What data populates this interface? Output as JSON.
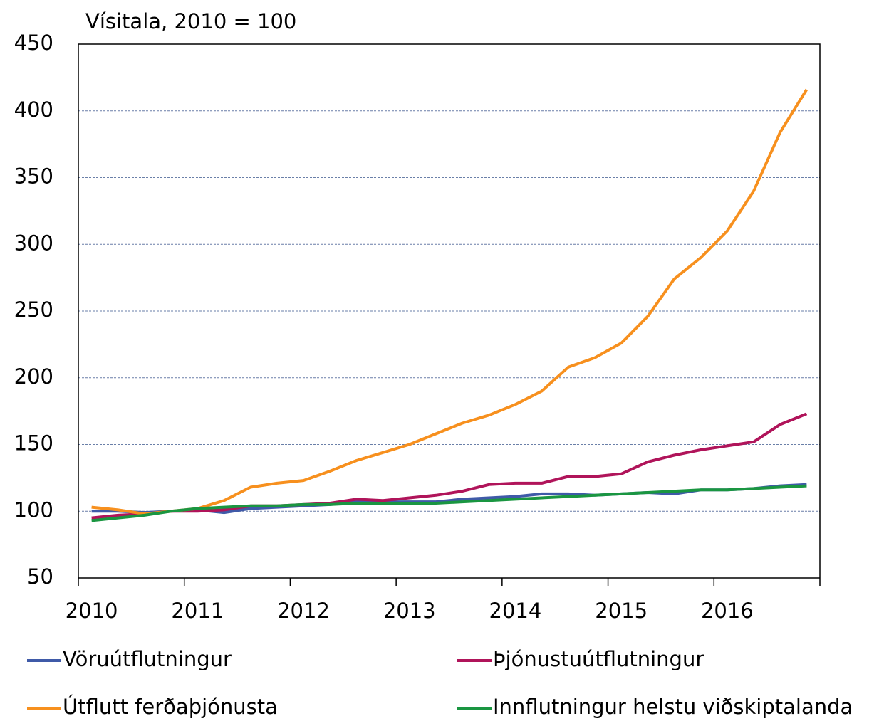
{
  "chart_data": {
    "type": "line",
    "y_label": "Vísitala, 2010 = 100",
    "categories": [
      "2010",
      null,
      null,
      null,
      "2011",
      null,
      null,
      null,
      "2012",
      null,
      null,
      null,
      "2013",
      null,
      null,
      null,
      "2014",
      null,
      null,
      null,
      "2015",
      null,
      null,
      null,
      "2016",
      null,
      null,
      null
    ],
    "series": [
      {
        "name": "Vöruútflutningur",
        "color": "#3f5aa8",
        "values": [
          100,
          100,
          99,
          100,
          101,
          99,
          102,
          103,
          104,
          105,
          107,
          107,
          107,
          107,
          109,
          110,
          111,
          113,
          113,
          112,
          113,
          114,
          113,
          116,
          116,
          117,
          119,
          120
        ]
      },
      {
        "name": "Þjónustuútflutningur",
        "color": "#b0145a",
        "values": [
          95,
          97,
          98,
          100,
          100,
          101,
          104,
          104,
          105,
          106,
          109,
          108,
          110,
          112,
          115,
          120,
          121,
          121,
          126,
          126,
          128,
          137,
          142,
          146,
          149,
          152,
          165,
          173
        ]
      },
      {
        "name": "Útflutt ferðaþjónusta",
        "color": "#f7901e",
        "values": [
          103,
          101,
          98,
          100,
          102,
          108,
          118,
          121,
          123,
          130,
          138,
          144,
          150,
          158,
          166,
          172,
          180,
          190,
          208,
          215,
          226,
          246,
          274,
          290,
          310,
          340,
          384,
          416
        ]
      },
      {
        "name": "Innflutningur helstu viðskiptalanda",
        "color": "#1a9641",
        "values": [
          93,
          95,
          97,
          100,
          102,
          103,
          104,
          104,
          105,
          105,
          106,
          106,
          106,
          106,
          107,
          108,
          109,
          110,
          111,
          112,
          113,
          114,
          115,
          116,
          116,
          117,
          118,
          119
        ]
      }
    ],
    "ylim": [
      50,
      450
    ],
    "yticks": [
      50,
      100,
      150,
      200,
      250,
      300,
      350,
      400,
      450
    ],
    "grid": true
  }
}
